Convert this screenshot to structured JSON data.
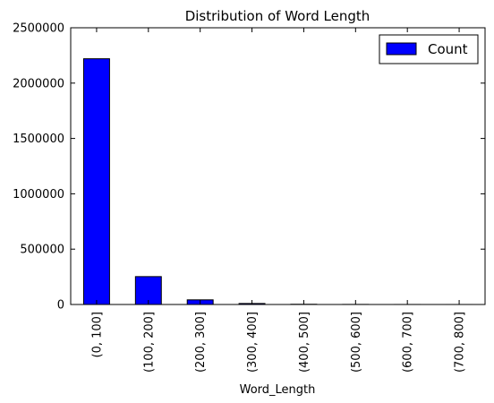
{
  "chart_data": {
    "type": "bar",
    "title": "Distribution of Word Length",
    "xlabel": "Word_Length",
    "ylabel": "",
    "categories": [
      "(0, 100]",
      "(100, 200]",
      "(200, 300]",
      "(300, 400]",
      "(400, 500]",
      "(500, 600]",
      "(600, 700]",
      "(700, 800]"
    ],
    "series": [
      {
        "name": "Count",
        "values": [
          2220000,
          252000,
          42000,
          9000,
          2000,
          800,
          300,
          100
        ],
        "color": "#0000ff"
      }
    ],
    "ylim": [
      0,
      2500000
    ],
    "yticks": [
      0,
      500000,
      1000000,
      1500000,
      2000000,
      2500000
    ],
    "ytick_labels": [
      "0",
      "500000",
      "1000000",
      "1500000",
      "2000000",
      "2500000"
    ],
    "grid": false,
    "legend_position": "top-right"
  }
}
